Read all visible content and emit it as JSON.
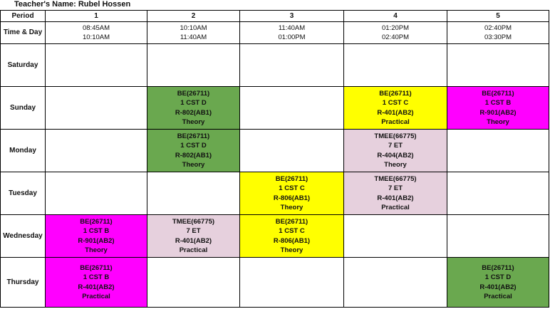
{
  "teacher": "Teacher's Name: Rubel Hossen",
  "header": {
    "period_label": "Period",
    "time_label": "Time & Day",
    "periods": [
      {
        "num": "1",
        "start": "08:45AM",
        "end": "10:10AM"
      },
      {
        "num": "2",
        "start": "10:10AM",
        "end": "11:40AM"
      },
      {
        "num": "3",
        "start": "11:40AM",
        "end": "01:00PM"
      },
      {
        "num": "4",
        "start": "01:20PM",
        "end": "02:40PM"
      },
      {
        "num": "5",
        "start": "02:40PM",
        "end": "03:30PM"
      }
    ]
  },
  "colors": {
    "green": "#6aa84f",
    "yellow": "#ffff00",
    "magenta": "#ff00ff",
    "pink": "#e6d0dd"
  },
  "days": [
    {
      "day": "Saturday",
      "slots": [
        null,
        null,
        null,
        null,
        null
      ]
    },
    {
      "day": "Sunday",
      "slots": [
        null,
        {
          "course": "BE(26711)",
          "group": "1 CST D",
          "room": "R-802(AB1)",
          "type": "Theory",
          "color": "green"
        },
        null,
        {
          "course": "BE(26711)",
          "group": "1 CST C",
          "room": "R-401(AB2)",
          "type": "Practical",
          "color": "yellow"
        },
        {
          "course": "BE(26711)",
          "group": "1 CST B",
          "room": "R-901(AB2)",
          "type": "Theory",
          "color": "magenta"
        }
      ]
    },
    {
      "day": "Monday",
      "slots": [
        null,
        {
          "course": "BE(26711)",
          "group": "1 CST D",
          "room": "R-802(AB1)",
          "type": "Theory",
          "color": "green"
        },
        null,
        {
          "course": "TMEE(66775)",
          "group": "7 ET",
          "room": "R-404(AB2)",
          "type": "Theory",
          "color": "pink"
        },
        null
      ]
    },
    {
      "day": "Tuesday",
      "slots": [
        null,
        null,
        {
          "course": "BE(26711)",
          "group": "1 CST C",
          "room": "R-806(AB1)",
          "type": "Theory",
          "color": "yellow"
        },
        {
          "course": "TMEE(66775)",
          "group": "7 ET",
          "room": "R-401(AB2)",
          "type": "Practical",
          "color": "pink"
        },
        null
      ]
    },
    {
      "day": "Wednesday",
      "slots": [
        {
          "course": "BE(26711)",
          "group": "1 CST B",
          "room": "R-901(AB2)",
          "type": "Theory",
          "color": "magenta"
        },
        {
          "course": "TMEE(66775)",
          "group": "7 ET",
          "room": "R-401(AB2)",
          "type": "Practical",
          "color": "pink"
        },
        {
          "course": "BE(26711)",
          "group": "1 CST C",
          "room": "R-806(AB1)",
          "type": "Theory",
          "color": "yellow"
        },
        null,
        null
      ]
    },
    {
      "day": "Thursday",
      "slots": [
        {
          "course": "BE(26711)",
          "group": "1 CST B",
          "room": "R-401(AB2)",
          "type": "Practical",
          "color": "magenta"
        },
        null,
        null,
        null,
        {
          "course": "BE(26711)",
          "group": "1 CST D",
          "room": "R-401(AB2)",
          "type": "Practical",
          "color": "green"
        }
      ]
    }
  ]
}
